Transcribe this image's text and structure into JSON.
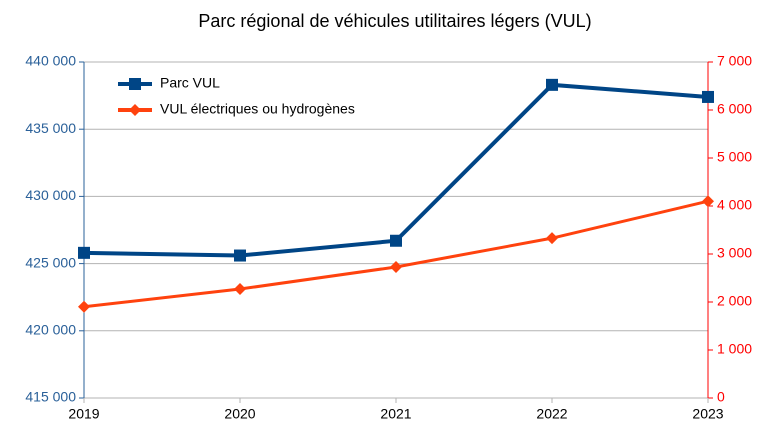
{
  "chart_data": {
    "type": "line",
    "title": "Parc régional de véhicules utilitaires légers (VUL)",
    "x": [
      2019,
      2020,
      2021,
      2022,
      2023
    ],
    "xlim": [
      2019,
      2023
    ],
    "xticks": [
      2019,
      2020,
      2021,
      2022,
      2023
    ],
    "series": [
      {
        "name": "Parc VUL",
        "color": "#004586",
        "marker": "square",
        "values": [
          425800,
          425600,
          426700,
          438300,
          437400
        ]
      },
      {
        "name": "VUL électriques ou hydrogènes",
        "color": "#ff420e",
        "marker": "diamond",
        "axis": "y2",
        "values": [
          1900,
          2270,
          2730,
          3330,
          4100
        ]
      }
    ],
    "ylim": [
      415000,
      440000
    ],
    "yticks": [
      {
        "value": 415000,
        "label": "415 000"
      },
      {
        "value": 420000,
        "label": "420 000"
      },
      {
        "value": 425000,
        "label": "425 000"
      },
      {
        "value": 430000,
        "label": "430 000"
      },
      {
        "value": 435000,
        "label": "435 000"
      },
      {
        "value": 440000,
        "label": "440 000"
      }
    ],
    "y2lim": [
      0,
      7000
    ],
    "y2ticks": [
      0,
      {
        "value": 1000,
        "label": "1 000"
      },
      {
        "value": 2000,
        "label": "2 000"
      },
      {
        "value": 3000,
        "label": "3 000"
      },
      {
        "value": 4000,
        "label": "4 000"
      },
      {
        "value": 5000,
        "label": "5 000"
      },
      {
        "value": 6000,
        "label": "6 000"
      },
      {
        "value": 7000,
        "label": "7 000"
      }
    ],
    "ycolor": "#2a6099",
    "y2color": "#ff0000",
    "grid": true,
    "legend": "top-left"
  }
}
